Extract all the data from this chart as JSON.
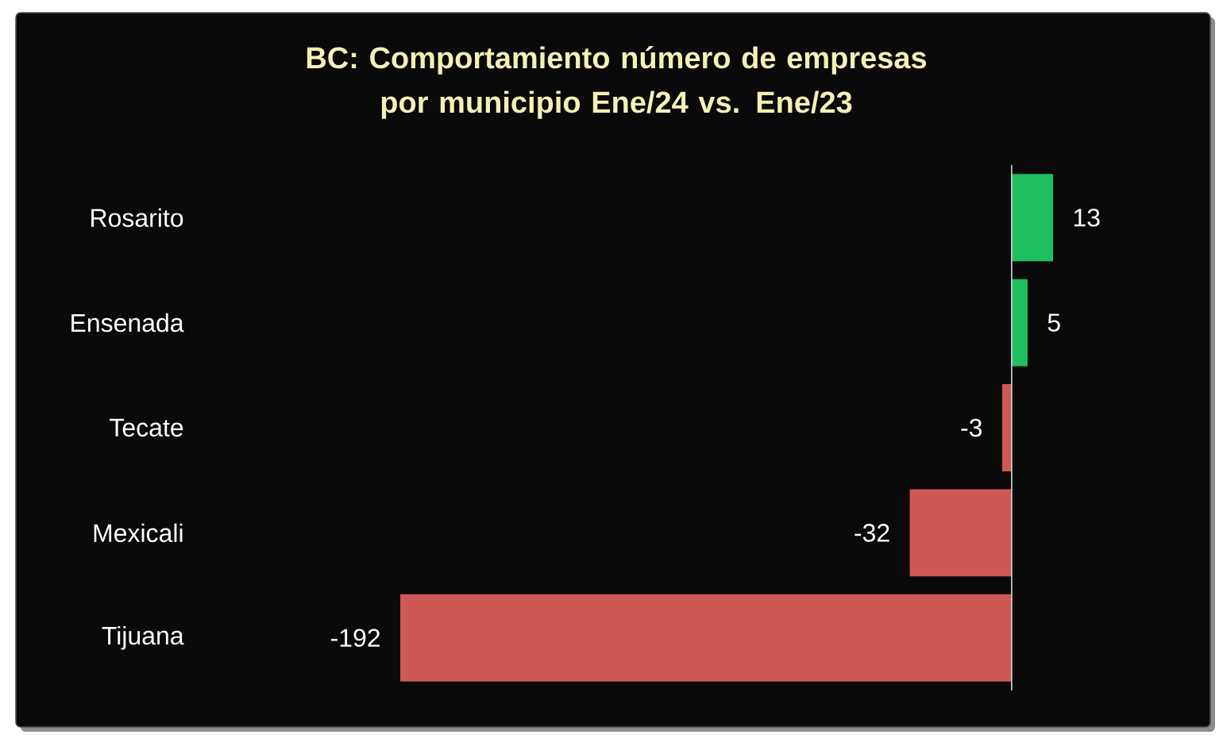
{
  "chart_data": {
    "type": "bar",
    "orientation": "horizontal",
    "title": "BC: Comportamiento número de empresas por municipio Ene/24 vs. Ene/23",
    "categories": [
      "Rosarito",
      "Ensenada",
      "Tecate",
      "Mexicali",
      "Tijuana"
    ],
    "values": [
      13,
      5,
      -3,
      -32,
      -192
    ],
    "colors": [
      "#1fbf5f",
      "#1fbf5f",
      "#cd5856",
      "#cd5856",
      "#cd5856"
    ],
    "data_labels": true,
    "tick_labels": "y"
  }
}
